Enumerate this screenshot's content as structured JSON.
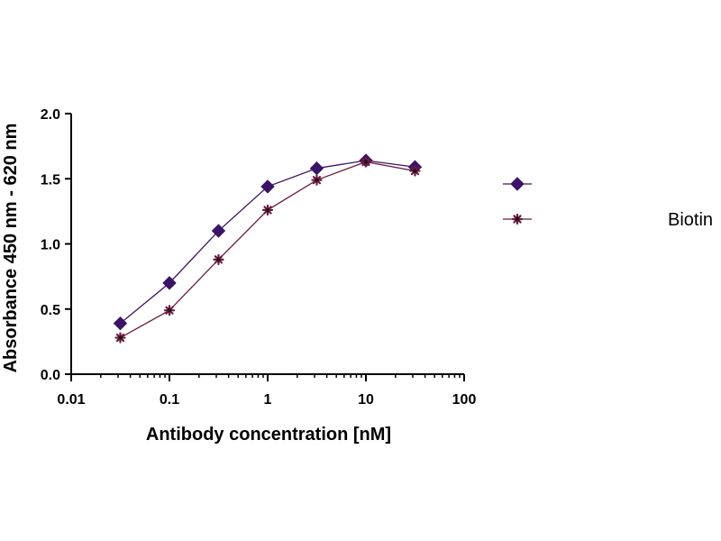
{
  "chart_data": {
    "type": "line",
    "title": "",
    "xlabel": "Antibody concentration [nM]",
    "ylabel": "Absorbance 450 nm - 620 nm",
    "xscale": "log",
    "xlim": [
      0.01,
      100
    ],
    "ylim": [
      0,
      2.0
    ],
    "x_ticks": [
      "0.01",
      "0.1",
      "1",
      "10",
      "100"
    ],
    "y_ticks": [
      "0.0",
      "0.5",
      "1.0",
      "1.5",
      "2.0"
    ],
    "grid": false,
    "legend_position": "right",
    "series": [
      {
        "name": "",
        "marker": "diamond",
        "color": "#3b1466",
        "x": [
          0.0316,
          0.1,
          0.316,
          1,
          3.16,
          10,
          31.6
        ],
        "y": [
          0.39,
          0.7,
          1.1,
          1.44,
          1.58,
          1.64,
          1.59
        ]
      },
      {
        "name": "Biotin",
        "marker": "star",
        "color": "#6e1840",
        "x": [
          0.0316,
          0.1,
          0.316,
          1,
          3.16,
          10,
          31.6
        ],
        "y": [
          0.28,
          0.49,
          0.88,
          1.26,
          1.49,
          1.63,
          1.56
        ]
      }
    ]
  }
}
